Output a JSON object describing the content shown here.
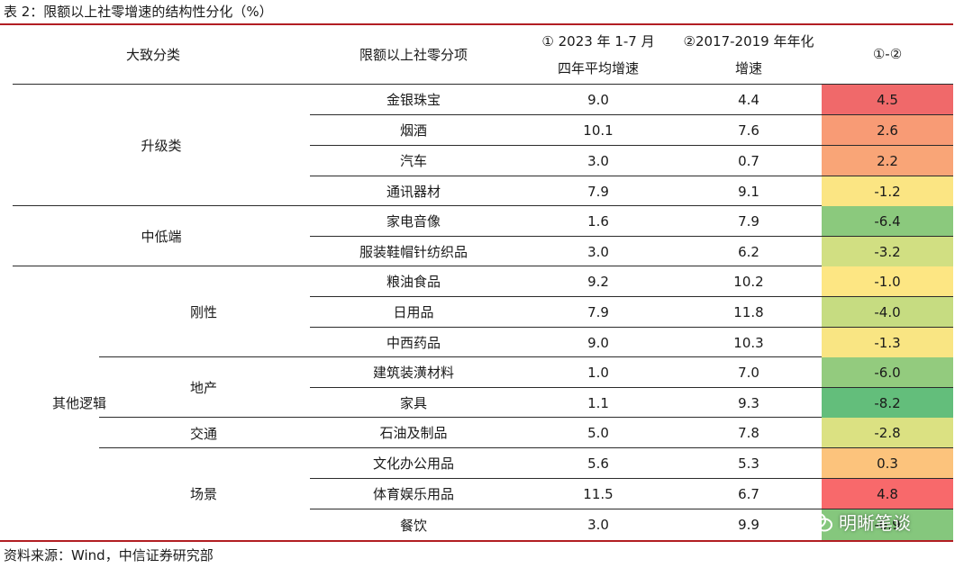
{
  "title": "表 2：限额以上社零增速的结构性分化（%）",
  "headers": {
    "col1": "大致分类",
    "col2": "限额以上社零分项",
    "col3_line1": "①  2023 年 1-7 月",
    "col3_line2": "四年平均增速",
    "col4_line1": "②2017-2019 年年化",
    "col4_line2": "增速",
    "col5": "①-②"
  },
  "groups": {
    "upgrade": "升级类",
    "midlow": "中低端",
    "other": "其他逻辑",
    "rigid": "刚性",
    "property": "地产",
    "transport": "交通",
    "scene": "场景"
  },
  "rows": [
    {
      "item": "金银珠宝",
      "v1": "9.0",
      "v2": "4.4",
      "diff": "4.5",
      "color": "#f0696a"
    },
    {
      "item": "烟酒",
      "v1": "10.1",
      "v2": "7.6",
      "diff": "2.6",
      "color": "#f89b75"
    },
    {
      "item": "汽车",
      "v1": "3.0",
      "v2": "0.7",
      "diff": "2.2",
      "color": "#f9a577"
    },
    {
      "item": "通讯器材",
      "v1": "7.9",
      "v2": "9.1",
      "diff": "-1.2",
      "color": "#fbe583"
    },
    {
      "item": "家电音像",
      "v1": "1.6",
      "v2": "7.9",
      "diff": "-6.4",
      "color": "#8bc97d"
    },
    {
      "item": "服装鞋帽针纺织品",
      "v1": "3.0",
      "v2": "6.2",
      "diff": "-3.2",
      "color": "#d1df82"
    },
    {
      "item": "粮油食品",
      "v1": "9.2",
      "v2": "10.2",
      "diff": "-1.0",
      "color": "#fde683"
    },
    {
      "item": "日用品",
      "v1": "7.9",
      "v2": "11.8",
      "diff": "-4.0",
      "color": "#c6dc81"
    },
    {
      "item": "中西药品",
      "v1": "9.0",
      "v2": "10.3",
      "diff": "-1.3",
      "color": "#f9e583"
    },
    {
      "item": "建筑装潢材料",
      "v1": "1.0",
      "v2": "7.0",
      "diff": "-6.0",
      "color": "#93cb7e"
    },
    {
      "item": "家具",
      "v1": "1.1",
      "v2": "9.3",
      "diff": "-8.2",
      "color": "#63be7b"
    },
    {
      "item": "石油及制品",
      "v1": "5.0",
      "v2": "7.8",
      "diff": "-2.8",
      "color": "#dbe182"
    },
    {
      "item": "文化办公用品",
      "v1": "5.6",
      "v2": "5.3",
      "diff": "0.3",
      "color": "#fcc37c"
    },
    {
      "item": "体育娱乐用品",
      "v1": "11.5",
      "v2": "6.7",
      "diff": "4.8",
      "color": "#f8696b"
    },
    {
      "item": "餐饮",
      "v1": "3.0",
      "v2": "9.9",
      "diff": "-6.9",
      "color": "#85c77d"
    }
  ],
  "source": "资料来源：Wind，中信证券研究部",
  "watermark": "明晰笔谈"
}
